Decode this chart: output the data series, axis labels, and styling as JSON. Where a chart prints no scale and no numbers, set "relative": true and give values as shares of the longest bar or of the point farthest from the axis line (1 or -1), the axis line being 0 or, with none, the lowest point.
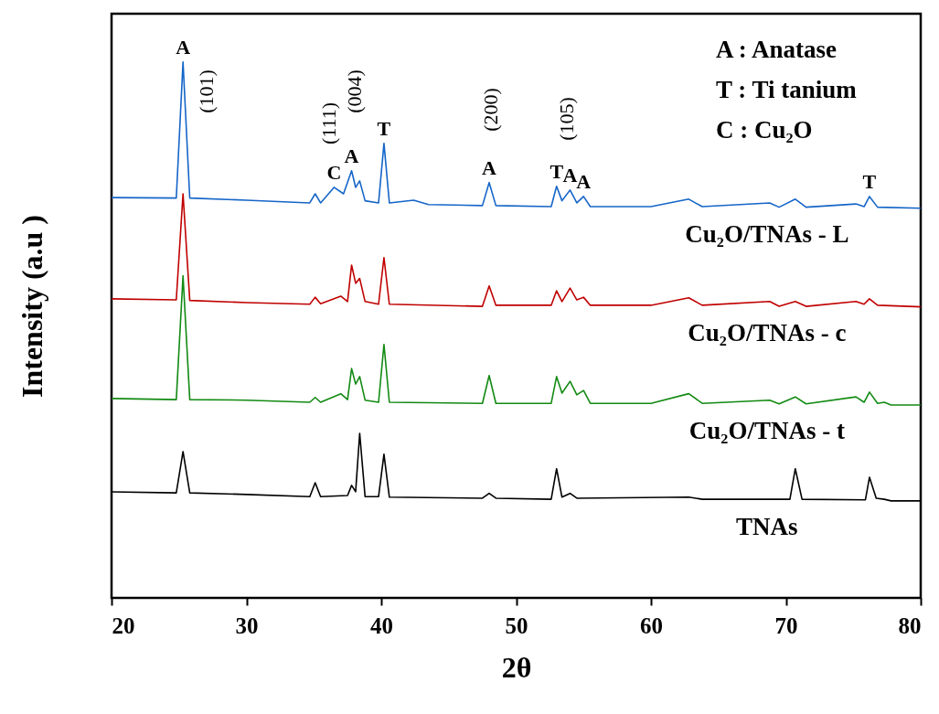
{
  "chart_data": {
    "type": "line",
    "relative": true,
    "xlabel": "2θ",
    "ylabel": "Intensity (a.u )",
    "xlim": [
      20,
      80
    ],
    "xticks": [
      20,
      30,
      40,
      50,
      60,
      70,
      80
    ],
    "tick_labels": "x",
    "line_style": "solid",
    "series": [
      {
        "name": "Cu₂O/TNAs - L",
        "color": "#1565c8",
        "x": [
          20,
          24.8,
          25.3,
          25.8,
          30,
          34.7,
          35.1,
          35.5,
          36.5,
          37.2,
          37.8,
          38.1,
          38.4,
          38.8,
          39.8,
          40.2,
          40.6,
          42.4,
          43.5,
          47.5,
          48.0,
          48.5,
          52.6,
          53.0,
          53.4,
          54.0,
          54.5,
          55.0,
          55.5,
          60,
          62.8,
          63.8,
          68.8,
          69.5,
          70.7,
          71.5,
          75.2,
          75.8,
          76.2,
          76.8,
          80
        ],
        "values": [
          0.747,
          0.746,
          1,
          0.746,
          0.742,
          0.737,
          0.754,
          0.737,
          0.766,
          0.754,
          0.797,
          0.766,
          0.778,
          0.741,
          0.737,
          0.848,
          0.737,
          0.742,
          0.734,
          0.732,
          0.775,
          0.732,
          0.73,
          0.768,
          0.741,
          0.761,
          0.737,
          0.749,
          0.73,
          0.73,
          0.744,
          0.73,
          0.737,
          0.729,
          0.744,
          0.729,
          0.735,
          0.73,
          0.749,
          0.729,
          0.727
        ]
      },
      {
        "name": "Cu₂O/TNAs - c",
        "color": "#c00000",
        "x": [
          20,
          24.8,
          25.3,
          25.8,
          30,
          34.7,
          35.1,
          35.5,
          37.0,
          37.5,
          37.8,
          38.1,
          38.4,
          38.8,
          39.8,
          40.2,
          40.6,
          47.5,
          48.0,
          48.5,
          52.6,
          53.0,
          53.4,
          54.0,
          54.5,
          55.0,
          55.5,
          60,
          62.8,
          63.8,
          68.8,
          69.5,
          70.7,
          71.5,
          75.2,
          75.8,
          76.2,
          76.8,
          80
        ],
        "values": [
          0.558,
          0.556,
          0.754,
          0.555,
          0.551,
          0.548,
          0.561,
          0.549,
          0.563,
          0.553,
          0.621,
          0.587,
          0.596,
          0.553,
          0.548,
          0.635,
          0.548,
          0.544,
          0.582,
          0.546,
          0.546,
          0.573,
          0.553,
          0.578,
          0.556,
          0.561,
          0.546,
          0.546,
          0.56,
          0.546,
          0.553,
          0.544,
          0.553,
          0.544,
          0.553,
          0.548,
          0.558,
          0.546,
          0.543
        ]
      },
      {
        "name": "Cu₂O/TNAs - t",
        "color": "#128a12",
        "x": [
          20,
          24.8,
          25.3,
          25.8,
          30,
          34.7,
          35.1,
          35.5,
          37.0,
          37.5,
          37.8,
          38.1,
          38.4,
          38.8,
          39.8,
          40.2,
          40.6,
          47.5,
          48.0,
          48.5,
          52.6,
          53.0,
          53.4,
          54.0,
          54.5,
          55.0,
          55.5,
          60,
          62.8,
          63.8,
          68.8,
          69.5,
          70.7,
          71.5,
          75.2,
          75.8,
          76.2,
          76.8,
          77.3,
          77.8,
          80
        ],
        "values": [
          0.372,
          0.37,
          0.601,
          0.37,
          0.369,
          0.365,
          0.374,
          0.365,
          0.381,
          0.37,
          0.428,
          0.399,
          0.413,
          0.369,
          0.365,
          0.473,
          0.365,
          0.363,
          0.415,
          0.363,
          0.363,
          0.413,
          0.382,
          0.404,
          0.379,
          0.387,
          0.363,
          0.363,
          0.381,
          0.363,
          0.369,
          0.362,
          0.375,
          0.362,
          0.375,
          0.365,
          0.384,
          0.363,
          0.365,
          0.36,
          0.36
        ]
      },
      {
        "name": "TNAs",
        "color": "#000000",
        "x": [
          20,
          24.8,
          25.3,
          25.8,
          30,
          34.7,
          35.1,
          35.5,
          37.5,
          37.8,
          38.1,
          38.4,
          38.8,
          39.8,
          40.2,
          40.6,
          47.5,
          48.0,
          48.5,
          52.6,
          53.0,
          53.4,
          54.0,
          54.5,
          62.8,
          63.8,
          70.3,
          70.7,
          71.2,
          75.9,
          76.2,
          76.7,
          77.3,
          77.8,
          80
        ],
        "values": [
          0.198,
          0.196,
          0.273,
          0.196,
          0.193,
          0.189,
          0.215,
          0.189,
          0.191,
          0.21,
          0.198,
          0.307,
          0.189,
          0.189,
          0.268,
          0.188,
          0.186,
          0.195,
          0.186,
          0.184,
          0.241,
          0.188,
          0.195,
          0.186,
          0.188,
          0.184,
          0.184,
          0.241,
          0.184,
          0.183,
          0.225,
          0.186,
          0.184,
          0.181,
          0.181
        ]
      }
    ],
    "annotations": [
      {
        "text": "A",
        "x": 25.3,
        "y": 1
      },
      {
        "text": "C",
        "x": 36.5,
        "y": 0.766
      },
      {
        "text": "A",
        "x": 37.8,
        "y": 0.797
      },
      {
        "text": "T",
        "x": 40.2,
        "y": 0.848
      },
      {
        "text": "A",
        "x": 48.0,
        "y": 0.775
      },
      {
        "text": "T",
        "x": 53.0,
        "y": 0.768
      },
      {
        "text": "A",
        "x": 54.0,
        "y": 0.761
      },
      {
        "text": "A",
        "x": 55.0,
        "y": 0.749
      },
      {
        "text": "T",
        "x": 76.2,
        "y": 0.749
      },
      "(101)",
      "(111)",
      "(004)",
      "(200)",
      "(105)",
      "A : Anatase",
      "T : Ti tanium",
      "C : Cu₂O"
    ]
  }
}
